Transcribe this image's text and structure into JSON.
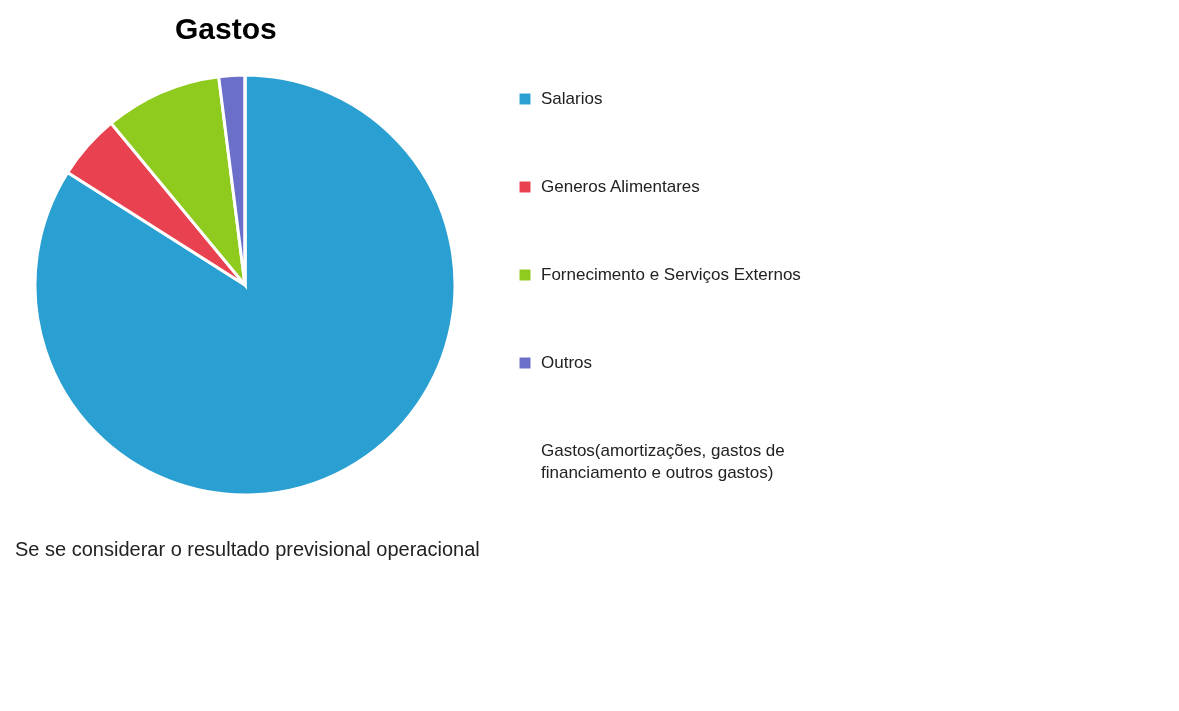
{
  "chart_data": {
    "type": "pie",
    "title": "Gastos",
    "categories": [
      "Salarios",
      "Generos Alimentares",
      "Fornecimento e Serviços Externos",
      "Outros",
      "Gastos(amortizações, gastos de financiamento e outros gastos)"
    ],
    "values": [
      84,
      5,
      9,
      2,
      0
    ],
    "colors": [
      "#2a9fd2",
      "#e8414f",
      "#8fcb1e",
      "#6b6fc9",
      null
    ],
    "legend": "right",
    "annotations": [
      "Se se considerar o resultado previsional operacional"
    ]
  }
}
